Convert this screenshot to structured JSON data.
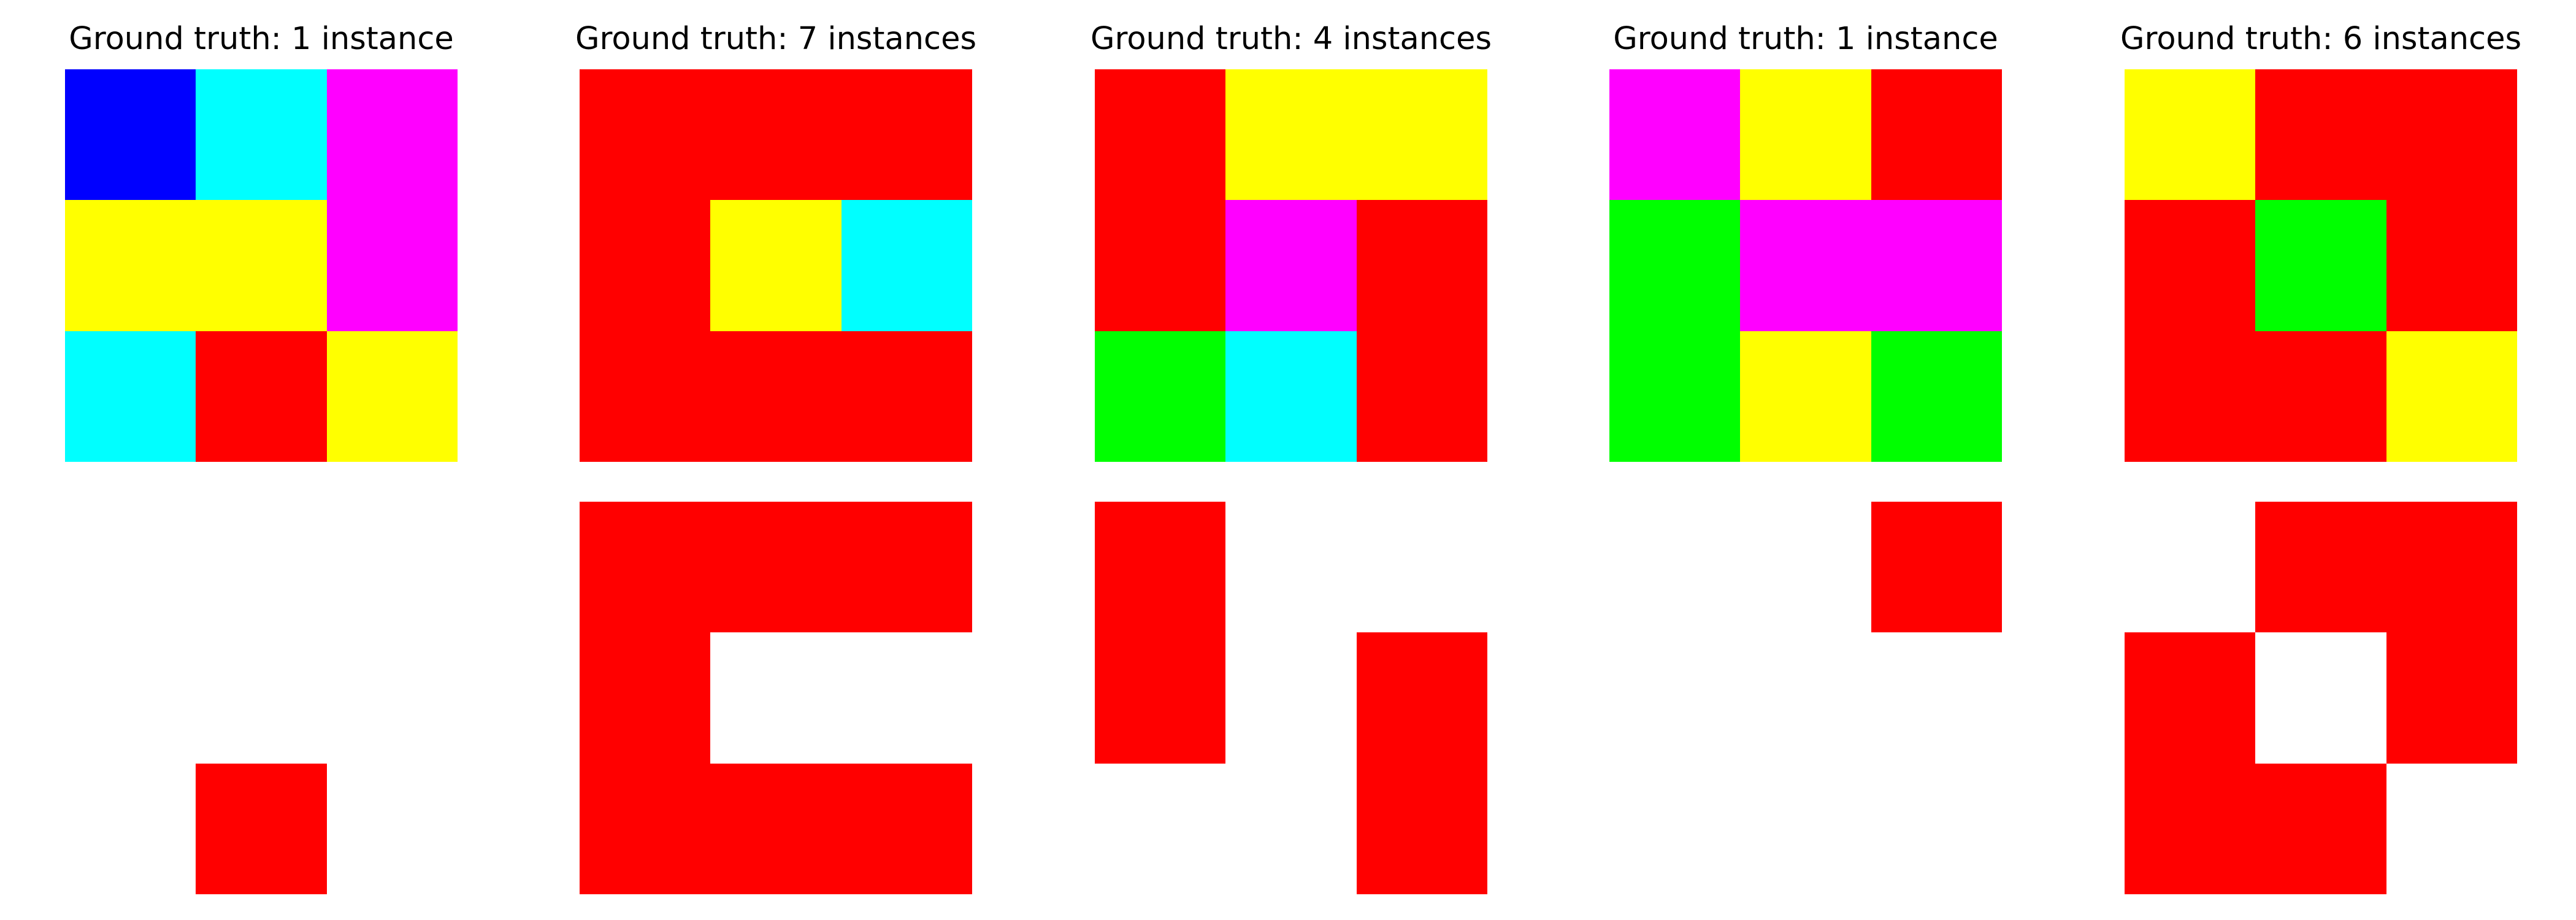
{
  "palette": {
    "0": "#ffffff",
    "1": "#0000ff",
    "2": "#ff0000",
    "3": "#00ff00",
    "4": "#ffff00",
    "6": "#ff00ff",
    "8": "#00ffff"
  },
  "panels": [
    {
      "title": "Ground truth: 1 instance",
      "input": [
        [
          1,
          8,
          6
        ],
        [
          4,
          4,
          6
        ],
        [
          8,
          2,
          4
        ]
      ],
      "output": [
        [
          0,
          0,
          0
        ],
        [
          0,
          0,
          0
        ],
        [
          0,
          2,
          0
        ]
      ]
    },
    {
      "title": "Ground truth: 7 instances",
      "input": [
        [
          2,
          2,
          2
        ],
        [
          2,
          4,
          8
        ],
        [
          2,
          2,
          2
        ]
      ],
      "output": [
        [
          2,
          2,
          2
        ],
        [
          2,
          0,
          0
        ],
        [
          2,
          2,
          2
        ]
      ]
    },
    {
      "title": "Ground truth: 4 instances",
      "input": [
        [
          2,
          4,
          4
        ],
        [
          2,
          6,
          2
        ],
        [
          3,
          8,
          2
        ]
      ],
      "output": [
        [
          2,
          0,
          0
        ],
        [
          2,
          0,
          2
        ],
        [
          0,
          0,
          2
        ]
      ]
    },
    {
      "title": "Ground truth: 1 instance",
      "input": [
        [
          6,
          4,
          2
        ],
        [
          3,
          6,
          6
        ],
        [
          3,
          4,
          3
        ]
      ],
      "output": [
        [
          0,
          0,
          2
        ],
        [
          0,
          0,
          0
        ],
        [
          0,
          0,
          0
        ]
      ]
    },
    {
      "title": "Ground truth: 6 instances",
      "input": [
        [
          4,
          2,
          2
        ],
        [
          2,
          3,
          2
        ],
        [
          2,
          2,
          4
        ]
      ],
      "output": [
        [
          0,
          2,
          2
        ],
        [
          2,
          0,
          2
        ],
        [
          2,
          2,
          0
        ]
      ]
    }
  ]
}
